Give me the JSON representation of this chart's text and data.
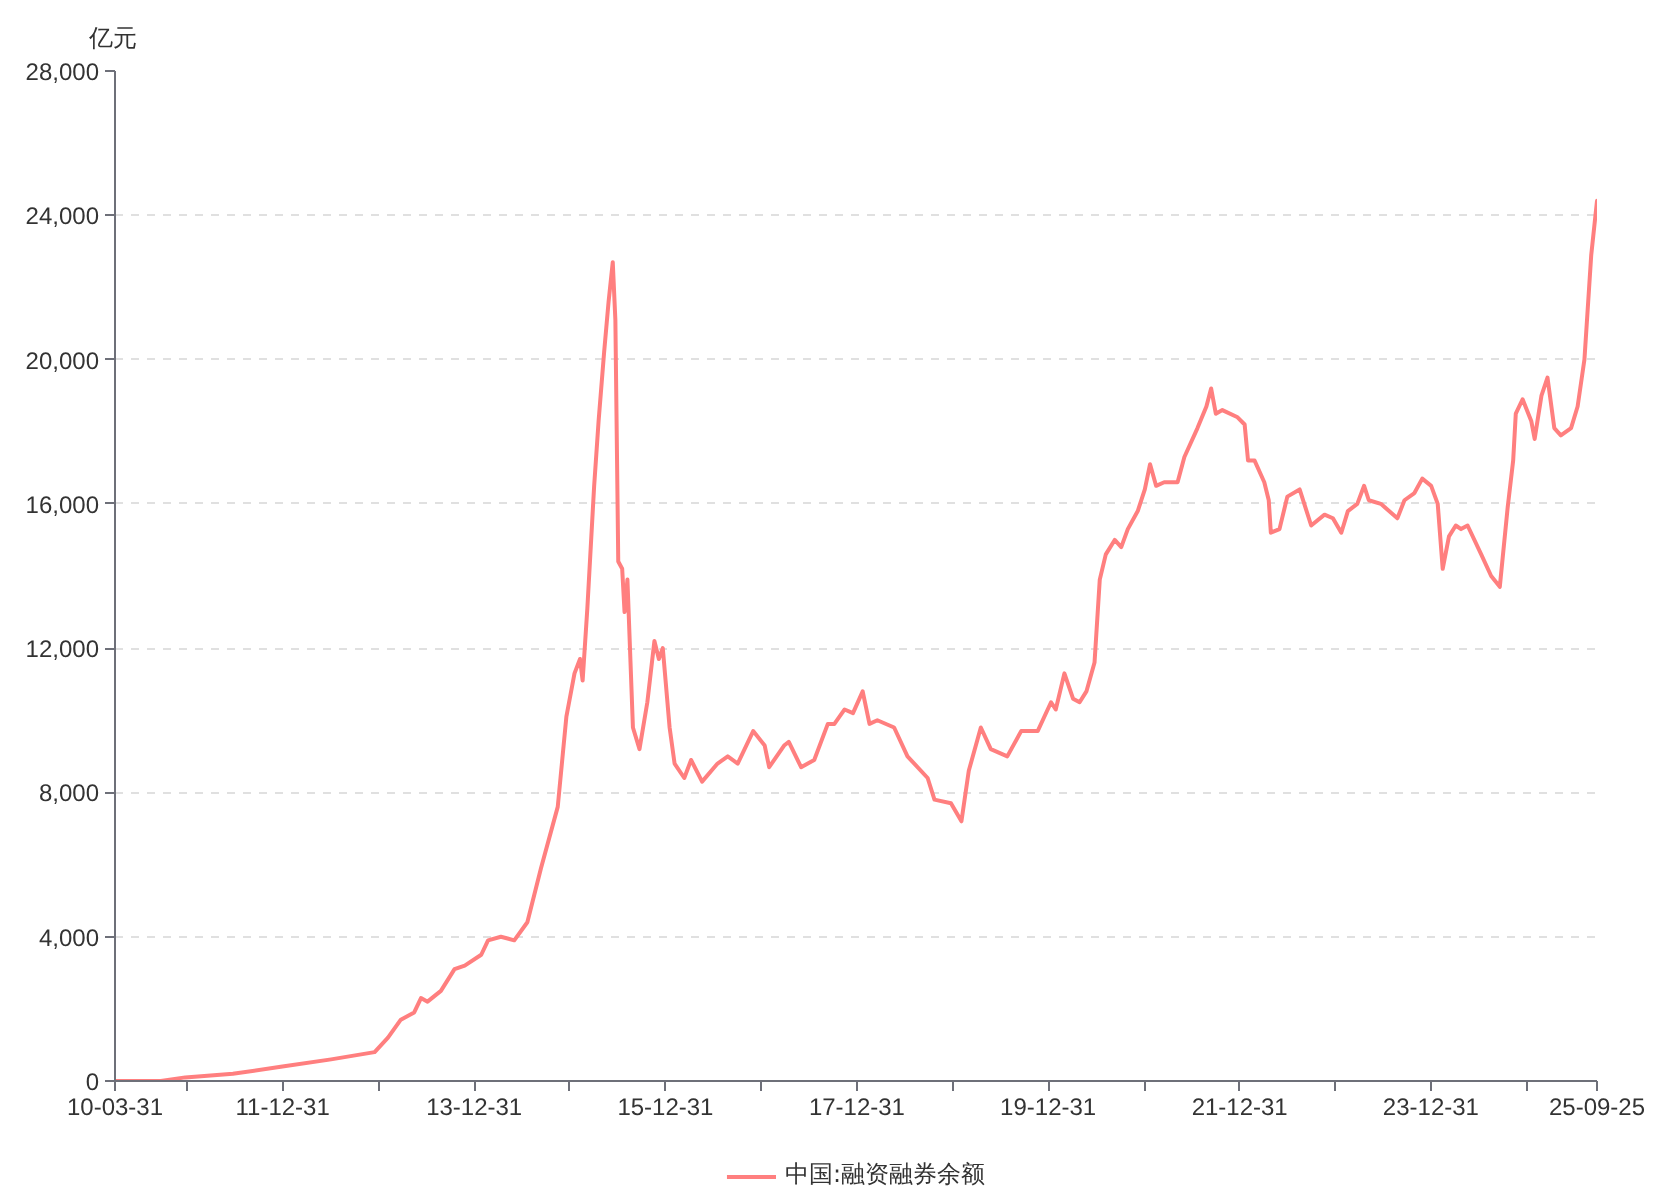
{
  "chart_data": {
    "type": "line",
    "ylabel": "亿元",
    "x": [
      "2010-03-31",
      "2010-09-22",
      "2010-12-24",
      "2011-06-24",
      "2011-12-30",
      "2012-07-03",
      "2012-12-16",
      "2013-02-05",
      "2013-03-26",
      "2013-05-16",
      "2013-06-11",
      "2013-07-06",
      "2013-08-26",
      "2013-10-17",
      "2013-11-25",
      "2014-01-27",
      "2014-02-22",
      "2014-04-12",
      "2014-06-02",
      "2014-07-22",
      "2014-09-12",
      "2014-11-15",
      "2014-12-18",
      "2015-01-18",
      "2015-02-08",
      "2015-02-18",
      "2015-03-08",
      "2015-04-03",
      "2015-04-20",
      "2015-05-11",
      "2015-05-28",
      "2015-06-13",
      "2015-06-23",
      "2015-07-04",
      "2015-07-19",
      "2015-07-28",
      "2015-08-08",
      "2015-08-29",
      "2015-09-23",
      "2015-10-23",
      "2015-11-19",
      "2015-12-06",
      "2015-12-21",
      "2016-01-16",
      "2016-02-04",
      "2016-03-12",
      "2016-04-07",
      "2016-05-19",
      "2016-07-17",
      "2016-08-25",
      "2016-10-02",
      "2016-11-30",
      "2017-01-13",
      "2017-01-30",
      "2017-03-28",
      "2017-04-15",
      "2017-06-01",
      "2017-07-21",
      "2017-09-11",
      "2017-10-06",
      "2017-11-14",
      "2017-12-16",
      "2018-01-22",
      "2018-02-17",
      "2018-03-19",
      "2018-05-22",
      "2018-07-12",
      "2018-09-27",
      "2018-10-23",
      "2018-12-25",
      "2019-02-03",
      "2019-03-03",
      "2019-04-18",
      "2019-05-26",
      "2019-07-28",
      "2019-09-19",
      "2019-11-21",
      "2020-01-11",
      "2020-01-29",
      "2020-03-02",
      "2020-04-04",
      "2020-04-29",
      "2020-05-25",
      "2020-06-25",
      "2020-07-15",
      "2020-08-07",
      "2020-09-10",
      "2020-10-05",
      "2020-10-30",
      "2020-12-07",
      "2021-01-03",
      "2021-01-23",
      "2021-02-15",
      "2021-03-18",
      "2021-05-08",
      "2021-06-03",
      "2021-07-23",
      "2021-08-26",
      "2021-09-13",
      "2021-10-01",
      "2021-10-26",
      "2021-12-23",
      "2022-01-19",
      "2022-02-01",
      "2022-02-26",
      "2022-04-04",
      "2022-04-21",
      "2022-04-29",
      "2022-06-01",
      "2022-07-01",
      "2022-08-17",
      "2022-09-30",
      "2022-11-20",
      "2022-12-22",
      "2023-01-23",
      "2023-02-17",
      "2023-03-25",
      "2023-04-20",
      "2023-05-08",
      "2023-06-23",
      "2023-08-25",
      "2023-09-21",
      "2023-10-29",
      "2023-11-28",
      "2024-01-01",
      "2024-01-26",
      "2024-02-14",
      "2024-03-09",
      "2024-04-04",
      "2024-04-24",
      "2024-05-19",
      "2024-07-10",
      "2024-08-17",
      "2024-09-19",
      "2024-10-19",
      "2024-11-09",
      "2024-11-19",
      "2024-12-15",
      "2025-01-17",
      "2025-01-30",
      "2025-02-25",
      "2025-03-20",
      "2025-04-15",
      "2025-05-10",
      "2025-06-18",
      "2025-07-13",
      "2025-08-08",
      "2025-09-03",
      "2025-09-25"
    ],
    "series": [
      {
        "name": "中国:融资融券余额",
        "color": "#ff7f7f",
        "values": [
          0,
          0,
          100,
          200,
          400,
          600,
          800,
          1200,
          1700,
          1900,
          2300,
          2200,
          2500,
          3100,
          3200,
          3500,
          3900,
          4000,
          3900,
          4400,
          5900,
          7600,
          10100,
          11300,
          11700,
          11100,
          13100,
          16500,
          18300,
          20200,
          21600,
          22700,
          21100,
          14400,
          14200,
          13000,
          13900,
          9800,
          9200,
          10500,
          12200,
          11700,
          12000,
          9800,
          8800,
          8400,
          8900,
          8300,
          8800,
          9000,
          8800,
          9700,
          9300,
          8700,
          9300,
          9400,
          8700,
          8900,
          9900,
          9900,
          10300,
          10200,
          10800,
          9900,
          10000,
          9800,
          9000,
          8400,
          7800,
          7700,
          7200,
          8600,
          9800,
          9200,
          9000,
          9700,
          9700,
          10500,
          10300,
          11300,
          10600,
          10500,
          10800,
          11600,
          13900,
          14600,
          15000,
          14800,
          15300,
          15800,
          16400,
          17100,
          16500,
          16600,
          16600,
          17300,
          18100,
          18700,
          19200,
          18500,
          18600,
          18400,
          18200,
          17200,
          17200,
          16600,
          16100,
          15200,
          15300,
          16200,
          16400,
          15400,
          15700,
          15600,
          15200,
          15800,
          16000,
          16500,
          16100,
          16000,
          15600,
          16100,
          16300,
          16700,
          16500,
          16000,
          14200,
          15100,
          15400,
          15300,
          15400,
          14600,
          14000,
          13700,
          15900,
          17200,
          18500,
          18900,
          18300,
          17800,
          19000,
          19500,
          18100,
          17900,
          18100,
          18700,
          20000,
          22900,
          24400
        ]
      }
    ],
    "xlim": [
      "2010-03-31",
      "2025-09-25"
    ],
    "xticks": [
      {
        "value": "2010-03-31",
        "label": "10-03-31"
      },
      {
        "value": "2010-12-31",
        "label": null
      },
      {
        "value": "2011-12-31",
        "label": "11-12-31"
      },
      {
        "value": "2012-12-31",
        "label": null
      },
      {
        "value": "2013-12-31",
        "label": "13-12-31"
      },
      {
        "value": "2014-12-31",
        "label": null
      },
      {
        "value": "2015-12-31",
        "label": "15-12-31"
      },
      {
        "value": "2016-12-31",
        "label": null
      },
      {
        "value": "2017-12-31",
        "label": "17-12-31"
      },
      {
        "value": "2018-12-31",
        "label": null
      },
      {
        "value": "2019-12-31",
        "label": "19-12-31"
      },
      {
        "value": "2020-12-31",
        "label": null
      },
      {
        "value": "2021-12-31",
        "label": "21-12-31"
      },
      {
        "value": "2022-12-31",
        "label": null
      },
      {
        "value": "2023-12-31",
        "label": "23-12-31"
      },
      {
        "value": "2024-12-31",
        "label": null
      },
      {
        "value": "2025-09-25",
        "label": "25-09-25"
      }
    ],
    "ylim": [
      0,
      28000
    ],
    "yticks": [
      {
        "value": 0,
        "label": "0"
      },
      {
        "value": 4000,
        "label": "4,000"
      },
      {
        "value": 8000,
        "label": "8,000"
      },
      {
        "value": 12000,
        "label": "12,000"
      },
      {
        "value": 16000,
        "label": "16,000"
      },
      {
        "value": 20000,
        "label": "20,000"
      },
      {
        "value": 24000,
        "label": "24,000"
      },
      {
        "value": 28000,
        "label": "28,000"
      }
    ],
    "grid": "y",
    "legend": "bottom"
  }
}
